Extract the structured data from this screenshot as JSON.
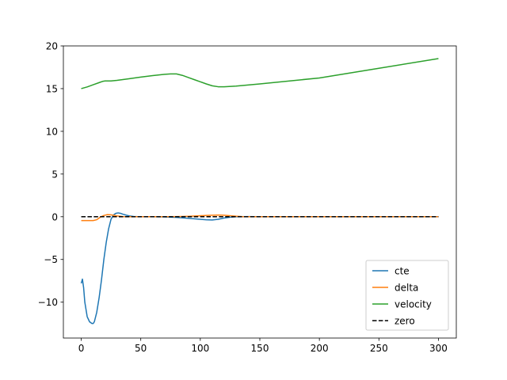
{
  "chart_data": {
    "type": "line",
    "title": "",
    "xlabel": "",
    "ylabel": "",
    "xlim": [
      -15,
      315
    ],
    "ylim": [
      -14.2,
      20
    ],
    "xticks": [
      0,
      50,
      100,
      150,
      200,
      250,
      300
    ],
    "yticks": [
      -10,
      -5,
      0,
      5,
      10,
      15,
      20
    ],
    "xtick_labels": [
      "0",
      "50",
      "100",
      "150",
      "200",
      "250",
      "300"
    ],
    "ytick_labels": [
      "−10",
      "−5",
      "0",
      "5",
      "10",
      "15",
      "20"
    ],
    "grid": false,
    "legend_position": "lower right",
    "series": [
      {
        "name": "cte",
        "color": "#1f77b4",
        "linestyle": "solid",
        "x": [
          0,
          1,
          2,
          3,
          5,
          7,
          9,
          10,
          11,
          13,
          15,
          17,
          19,
          21,
          23,
          25,
          27,
          29,
          31,
          33,
          35,
          38,
          41,
          44,
          47,
          50,
          55,
          60,
          70,
          80,
          90,
          100,
          105,
          110,
          115,
          120,
          125,
          130,
          140,
          150,
          200,
          250,
          300
        ],
        "y": [
          -7.8,
          -7.3,
          -8.3,
          -10.0,
          -11.7,
          -12.3,
          -12.5,
          -12.5,
          -12.3,
          -11.2,
          -9.5,
          -7.4,
          -5.0,
          -3.0,
          -1.4,
          -0.3,
          0.2,
          0.4,
          0.45,
          0.4,
          0.3,
          0.18,
          0.08,
          0.03,
          0.01,
          0.0,
          0.0,
          0.0,
          -0.02,
          -0.08,
          -0.18,
          -0.3,
          -0.36,
          -0.38,
          -0.3,
          -0.15,
          -0.05,
          0.0,
          0.02,
          0.0,
          0.0,
          0.0,
          0.0
        ]
      },
      {
        "name": "delta",
        "color": "#ff7f0e",
        "linestyle": "solid",
        "x": [
          0,
          5,
          10,
          13,
          16,
          19,
          22,
          25,
          28,
          31,
          35,
          40,
          45,
          50,
          60,
          70,
          80,
          90,
          95,
          100,
          105,
          110,
          115,
          120,
          125,
          130,
          135,
          140,
          150,
          200,
          250,
          300
        ],
        "y": [
          -0.45,
          -0.45,
          -0.45,
          -0.35,
          -0.05,
          0.15,
          0.25,
          0.22,
          0.15,
          0.08,
          0.02,
          0.0,
          0.0,
          0.0,
          0.0,
          0.0,
          0.02,
          0.05,
          0.08,
          0.12,
          0.15,
          0.18,
          0.2,
          0.18,
          0.12,
          0.06,
          0.02,
          0.0,
          0.0,
          0.0,
          0.0,
          0.0
        ]
      },
      {
        "name": "velocity",
        "color": "#2ca02c",
        "linestyle": "solid",
        "x": [
          0,
          5,
          10,
          15,
          18,
          20,
          25,
          30,
          40,
          50,
          60,
          70,
          75,
          80,
          85,
          90,
          95,
          100,
          105,
          110,
          115,
          120,
          130,
          150,
          200,
          250,
          300
        ],
        "y": [
          15.0,
          15.2,
          15.45,
          15.7,
          15.85,
          15.9,
          15.9,
          15.97,
          16.15,
          16.35,
          16.52,
          16.67,
          16.72,
          16.72,
          16.55,
          16.3,
          16.05,
          15.8,
          15.55,
          15.33,
          15.22,
          15.22,
          15.3,
          15.55,
          16.25,
          17.38,
          18.52
        ]
      },
      {
        "name": "zero",
        "color": "#000000",
        "linestyle": "dashed",
        "x": [
          0,
          300
        ],
        "y": [
          0,
          0
        ]
      }
    ]
  }
}
